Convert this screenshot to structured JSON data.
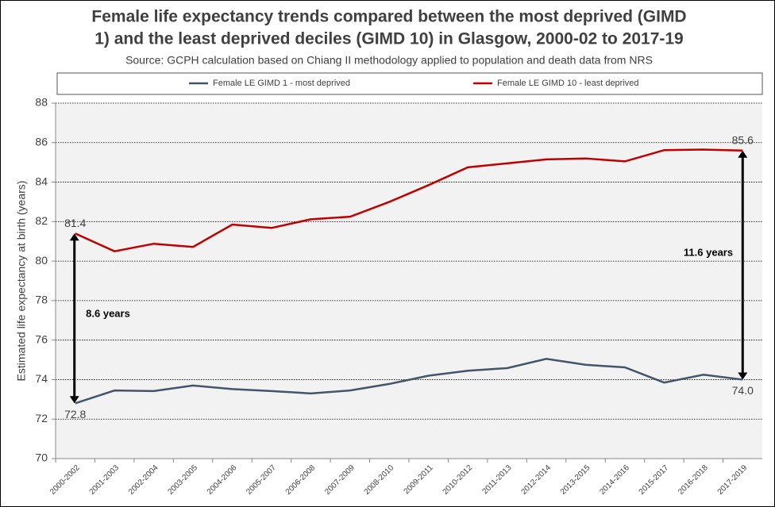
{
  "chart_data": {
    "type": "line",
    "title": [
      "Female life expectancy trends compared between the most deprived (GIMD",
      "1) and the least deprived deciles (GIMD 10) in Glasgow, 2000-02 to 2017-19"
    ],
    "subtitle": "Source: GCPH calculation based on Chiang II methodology applied to population and death data from NRS",
    "y_label": "Estimated life expectancy at birth (years)",
    "categories": [
      "2000-2002",
      "2001-2003",
      "2002-2004",
      "2003-2005",
      "2004-2006",
      "2005-2007",
      "2006-2008",
      "2007-2009",
      "2008-2010",
      "2009-2011",
      "2010-2012",
      "2011-2013",
      "2012-2014",
      "2013-2015",
      "2014-2016",
      "2015-2017",
      "2016-2018",
      "2017-2019"
    ],
    "series": [
      {
        "name": "Female LE GIMD 1 - most deprived",
        "color": "#44546a",
        "values": [
          72.8,
          73.45,
          73.42,
          73.7,
          73.52,
          73.42,
          73.3,
          73.45,
          73.78,
          74.2,
          74.45,
          74.58,
          75.05,
          74.75,
          74.62,
          73.85,
          74.25,
          74.0
        ],
        "value_labels": [
          "72.8",
          null,
          null,
          null,
          null,
          null,
          null,
          null,
          null,
          null,
          null,
          null,
          null,
          null,
          null,
          null,
          null,
          "74.0"
        ]
      },
      {
        "name": "Female LE GIMD 10 - least deprived",
        "color": "#c00000",
        "values": [
          81.4,
          80.5,
          80.88,
          80.72,
          81.85,
          81.68,
          82.12,
          82.25,
          83.0,
          83.85,
          84.75,
          84.95,
          85.15,
          85.2,
          85.05,
          85.62,
          85.65,
          85.6
        ],
        "value_labels": [
          "81.4",
          null,
          null,
          null,
          null,
          null,
          null,
          null,
          null,
          null,
          null,
          null,
          null,
          null,
          null,
          null,
          null,
          "85.6"
        ]
      }
    ],
    "annotations": [
      "8.6 years",
      "11.6 years"
    ],
    "ylim": [
      70,
      88
    ],
    "yticks": [
      70,
      72,
      74,
      76,
      78,
      80,
      82,
      84,
      86,
      88
    ],
    "grid": true
  }
}
